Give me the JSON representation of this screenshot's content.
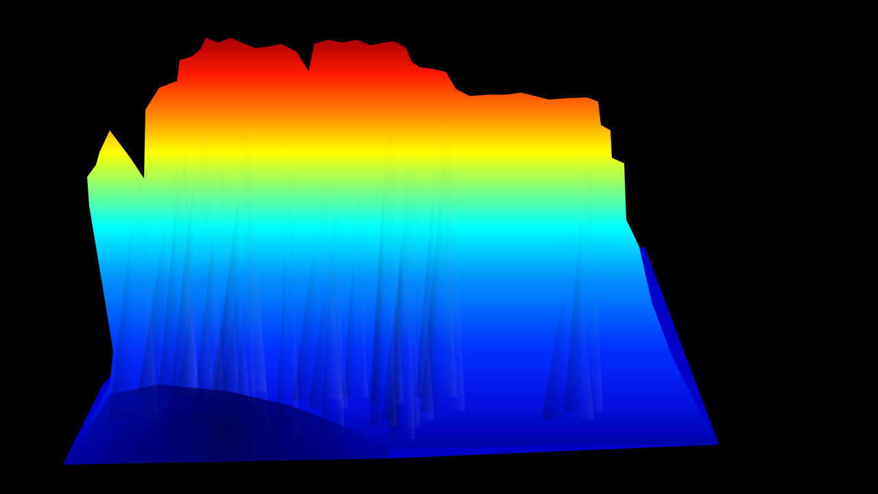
{
  "scene": {
    "background_color": "#000000",
    "render_type": "3d-height-surface",
    "colormap_name": "jet",
    "colormap": [
      "#00007f",
      "#0000ff",
      "#007fff",
      "#00ffff",
      "#7fff7f",
      "#ffff00",
      "#ff7f00",
      "#ff0000",
      "#7f0000"
    ],
    "ridge_count": 24
  }
}
